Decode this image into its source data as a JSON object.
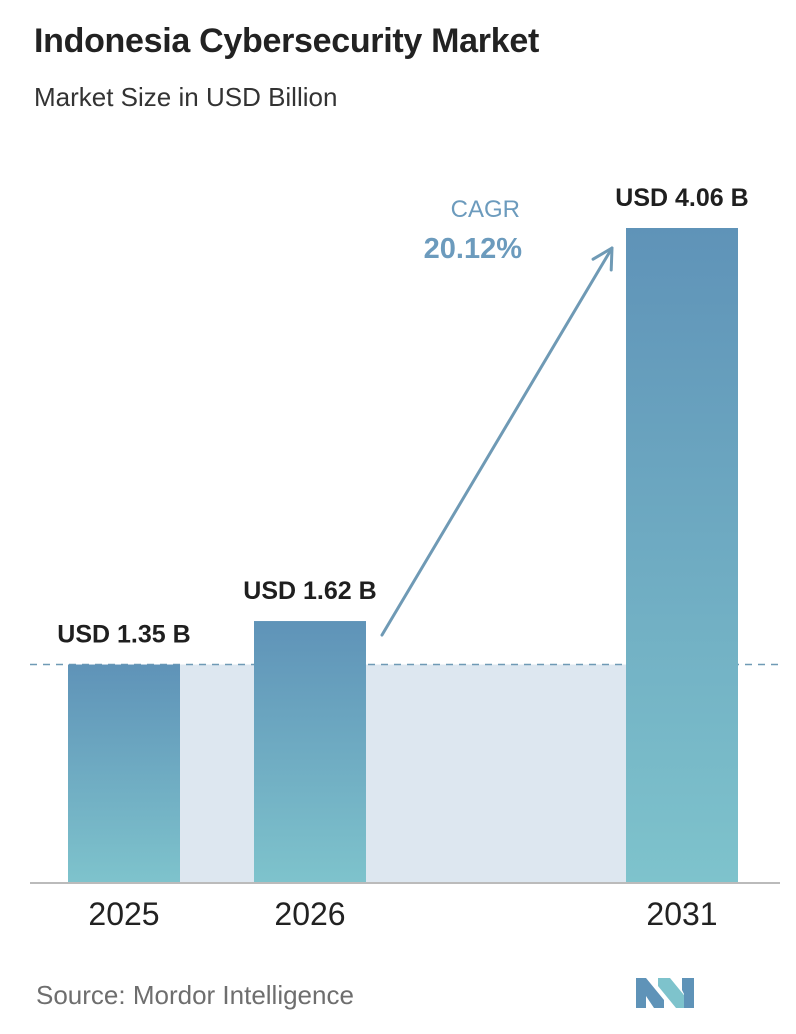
{
  "header": {
    "title": "Indonesia Cybersecurity Market",
    "subtitle": "Market Size in USD Billion"
  },
  "source": "Source:  Mordor Intelligence",
  "colors": {
    "bar_top": "#5f93b8",
    "bar_bottom": "#7ec3cc",
    "band": "#dde7f0",
    "reference_line": "#6f9ab5",
    "cagr_text": "#6c9bbd",
    "axis": "#bbbbbb"
  },
  "chart_data": {
    "type": "bar",
    "categories": [
      "2025",
      "2026",
      "2031"
    ],
    "values": [
      1.35,
      1.62,
      4.06
    ],
    "value_labels": [
      "USD 1.35 B",
      "USD 1.62 B",
      "USD 4.06 B"
    ],
    "title": "Indonesia Cybersecurity Market",
    "subtitle": "Market Size in USD Billion",
    "ylim": [
      0,
      4.06
    ],
    "grid": false,
    "reference_line": {
      "value": 1.35,
      "style": "dashed"
    },
    "annotation": {
      "label": "CAGR",
      "value": "20.12%",
      "from": "2026",
      "to": "2031"
    }
  }
}
